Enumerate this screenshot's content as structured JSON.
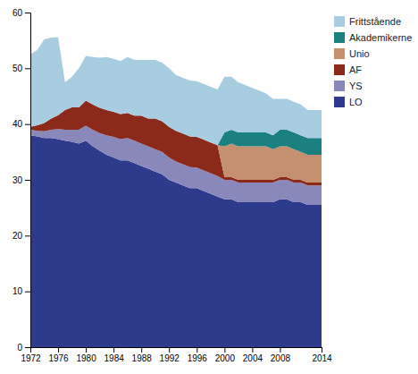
{
  "chart_data": {
    "type": "area",
    "stacked": true,
    "x": [
      1972,
      1973,
      1974,
      1975,
      1976,
      1977,
      1978,
      1979,
      1980,
      1981,
      1982,
      1983,
      1984,
      1985,
      1986,
      1987,
      1988,
      1989,
      1990,
      1991,
      1992,
      1993,
      1994,
      1995,
      1996,
      1997,
      1998,
      1999,
      2000,
      2001,
      2002,
      2003,
      2004,
      2005,
      2006,
      2007,
      2008,
      2009,
      2010,
      2011,
      2012,
      2013,
      2014
    ],
    "series": [
      {
        "name": "LO",
        "color": "#2e3a8c",
        "values": [
          38.0,
          37.8,
          37.5,
          37.5,
          37.3,
          37.0,
          36.8,
          36.5,
          37.0,
          36.0,
          35.2,
          34.5,
          34.0,
          33.5,
          33.5,
          33.0,
          32.5,
          32.0,
          31.5,
          31.0,
          30.0,
          29.5,
          29.0,
          28.5,
          28.5,
          28.0,
          27.5,
          27.0,
          26.5,
          26.5,
          26.0,
          26.0,
          26.0,
          26.0,
          26.0,
          26.0,
          26.5,
          26.5,
          26.0,
          26.0,
          25.5,
          25.5,
          25.5
        ]
      },
      {
        "name": "YS",
        "color": "#8888bb",
        "values": [
          1.0,
          1.0,
          1.2,
          1.5,
          1.8,
          2.0,
          2.2,
          2.5,
          2.7,
          3.0,
          3.2,
          3.5,
          3.7,
          3.8,
          4.0,
          4.0,
          4.0,
          4.0,
          4.0,
          4.0,
          4.0,
          3.8,
          3.8,
          3.8,
          3.7,
          3.7,
          3.7,
          3.7,
          3.5,
          3.5,
          3.5,
          3.5,
          3.5,
          3.5,
          3.5,
          3.5,
          3.5,
          3.5,
          3.5,
          3.5,
          3.5,
          3.5,
          3.5
        ]
      },
      {
        "name": "AF",
        "color": "#8b2a1a",
        "values": [
          0.5,
          1.0,
          1.5,
          2.0,
          2.5,
          3.5,
          4.0,
          4.0,
          4.5,
          4.5,
          4.5,
          4.5,
          4.5,
          4.5,
          4.5,
          4.5,
          5.0,
          5.0,
          5.5,
          5.5,
          5.5,
          5.5,
          5.5,
          5.5,
          5.5,
          5.5,
          5.5,
          5.5,
          0.5,
          0.5,
          0.5,
          0.5,
          0.5,
          0.5,
          0.5,
          0.5,
          0.5,
          0.5,
          0.5,
          0.5,
          0.5,
          0.5,
          0.5
        ]
      },
      {
        "name": "Unio",
        "color": "#c49070",
        "values": [
          0.0,
          0.0,
          0.0,
          0.0,
          0.0,
          0.0,
          0.0,
          0.0,
          0.0,
          0.0,
          0.0,
          0.0,
          0.0,
          0.0,
          0.0,
          0.0,
          0.0,
          0.0,
          0.0,
          0.0,
          0.0,
          0.0,
          0.0,
          0.0,
          0.0,
          0.0,
          0.0,
          0.0,
          5.5,
          6.0,
          6.0,
          6.0,
          6.0,
          6.0,
          6.0,
          5.5,
          5.5,
          5.5,
          5.5,
          5.0,
          5.0,
          5.0,
          5.0
        ]
      },
      {
        "name": "Akademikerne",
        "color": "#1a8080",
        "values": [
          0.0,
          0.0,
          0.0,
          0.0,
          0.0,
          0.0,
          0.0,
          0.0,
          0.0,
          0.0,
          0.0,
          0.0,
          0.0,
          0.0,
          0.0,
          0.0,
          0.0,
          0.0,
          0.0,
          0.0,
          0.0,
          0.0,
          0.0,
          0.0,
          0.0,
          0.0,
          0.0,
          0.0,
          2.5,
          2.5,
          2.5,
          2.5,
          2.5,
          2.5,
          2.5,
          2.5,
          3.0,
          3.0,
          3.0,
          3.0,
          3.0,
          3.0,
          3.0
        ]
      },
      {
        "name": "Frittstående",
        "color": "#a8cce0",
        "values": [
          13.0,
          13.5,
          15.0,
          14.5,
          14.0,
          5.0,
          5.5,
          7.0,
          8.0,
          8.5,
          9.0,
          9.5,
          9.5,
          9.5,
          10.0,
          10.0,
          10.0,
          10.5,
          10.5,
          10.5,
          10.5,
          10.0,
          10.0,
          10.0,
          10.0,
          10.0,
          10.0,
          10.0,
          10.0,
          9.5,
          9.0,
          8.5,
          8.0,
          7.5,
          7.0,
          6.5,
          5.5,
          5.5,
          5.5,
          5.5,
          5.0,
          5.0,
          5.0
        ]
      }
    ],
    "xlim": [
      1972,
      2014
    ],
    "xticks": [
      1972,
      1976,
      1980,
      1984,
      1988,
      1992,
      1996,
      2000,
      2004,
      2008,
      2014
    ],
    "ylim": [
      0,
      60
    ],
    "yticks": [
      0,
      10,
      20,
      30,
      40,
      50,
      60
    ],
    "grid": false,
    "legend": "right"
  }
}
